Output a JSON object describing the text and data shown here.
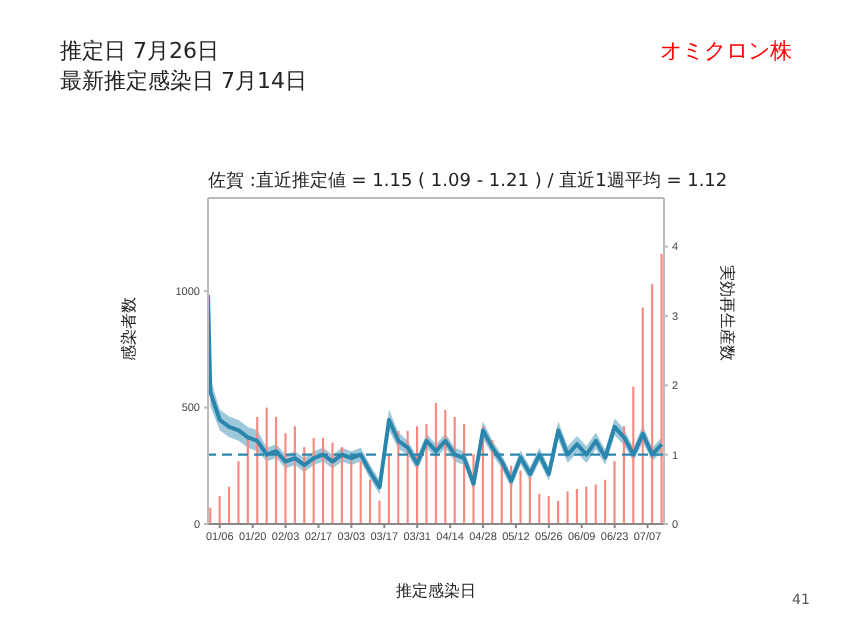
{
  "chart_data": {
    "type": "bar",
    "title": "佐賀 :直近推定値 = 1.15 ( 1.09 - 1.21 ) / 直近1週平均 = 1.12",
    "xlabel": "推定感染日",
    "ylabel": "感染者数",
    "y2label": "実効再生産数",
    "annotations": [
      "推定日  7月26日",
      "最新推定感染日  7月14日",
      "オミクロン株",
      "41"
    ],
    "x": [
      "--01-02",
      "--01-06",
      "--01-10",
      "--01-14",
      "--01-18",
      "--01-22",
      "--01-26",
      "--01-30",
      "--02-03",
      "--02-07",
      "--02-11",
      "--02-15",
      "--02-19",
      "--02-23",
      "--02-27",
      "--03-03",
      "--03-07",
      "--03-11",
      "--03-15",
      "--03-19",
      "--03-23",
      "--03-27",
      "--03-31",
      "--04-04",
      "--04-08",
      "--04-12",
      "--04-16",
      "--04-20",
      "--04-24",
      "--04-28",
      "--05-02",
      "--05-06",
      "--05-10",
      "--05-14",
      "--05-18",
      "--05-22",
      "--05-26",
      "--05-30",
      "--06-03",
      "--06-07",
      "--06-11",
      "--06-15",
      "--06-19",
      "--06-23",
      "--06-27",
      "--07-01",
      "--07-05",
      "--07-09",
      "--07-13"
    ],
    "series": [
      {
        "color": "#f8877e",
        "values": [
          70,
          120,
          160,
          270,
          370,
          460,
          500,
          460,
          390,
          420,
          330,
          370,
          370,
          350,
          330,
          300,
          270,
          190,
          100,
          300,
          400,
          400,
          420,
          430,
          520,
          490,
          460,
          430,
          300,
          420,
          360,
          270,
          250,
          230,
          200,
          130,
          120,
          100,
          140,
          150,
          160,
          170,
          190,
          270,
          420,
          590,
          930,
          1030,
          1160
        ]
      },
      {
        "type": "line",
        "axis": "y2",
        "color": "#2b86ad",
        "x": [
          "--01-01",
          "--01-02",
          "--01-06",
          "--01-10",
          "--01-14",
          "--01-18",
          "--01-22",
          "--01-26",
          "--01-30",
          "--02-03",
          "--02-07",
          "--02-11",
          "--02-15",
          "--02-19",
          "--02-23",
          "--02-27",
          "--03-03",
          "--03-07",
          "--03-11",
          "--03-15",
          "--03-19",
          "--03-23",
          "--03-27",
          "--03-31",
          "--04-04",
          "--04-08",
          "--04-12",
          "--04-16",
          "--04-20",
          "--04-24",
          "--04-28",
          "--05-02",
          "--05-06",
          "--05-10",
          "--05-14",
          "--05-18",
          "--05-22",
          "--05-26",
          "--05-30",
          "--06-03",
          "--06-07",
          "--06-11",
          "--06-15",
          "--06-19",
          "--06-23",
          "--06-27",
          "--07-01",
          "--07-05",
          "--07-09",
          "--07-13"
        ],
        "values": [
          3.3,
          1.9,
          1.5,
          1.4,
          1.35,
          1.25,
          1.2,
          1.0,
          1.05,
          0.9,
          0.95,
          0.85,
          0.95,
          1.0,
          0.9,
          1.0,
          0.95,
          1.0,
          0.75,
          0.53,
          1.5,
          1.2,
          1.1,
          0.87,
          1.2,
          1.05,
          1.2,
          1.0,
          0.95,
          0.58,
          1.35,
          1.1,
          0.9,
          0.62,
          0.96,
          0.72,
          1.0,
          0.72,
          1.35,
          1.0,
          1.15,
          1.0,
          1.2,
          0.96,
          1.4,
          1.25,
          1.0,
          1.3,
          1.0,
          1.15
        ],
        "lower": [
          3.0,
          1.7,
          1.35,
          1.25,
          1.2,
          1.1,
          1.05,
          0.9,
          0.95,
          0.8,
          0.85,
          0.75,
          0.85,
          0.9,
          0.8,
          0.9,
          0.85,
          0.9,
          0.65,
          0.43,
          1.35,
          1.08,
          1.0,
          0.77,
          1.1,
          0.95,
          1.1,
          0.9,
          0.85,
          0.48,
          1.22,
          1.0,
          0.8,
          0.52,
          0.86,
          0.62,
          0.9,
          0.62,
          1.22,
          0.88,
          1.03,
          0.88,
          1.08,
          0.85,
          1.28,
          1.13,
          0.9,
          1.18,
          0.9,
          1.05
        ],
        "upper": [
          3.5,
          2.1,
          1.65,
          1.55,
          1.5,
          1.4,
          1.35,
          1.1,
          1.15,
          1.0,
          1.05,
          0.95,
          1.05,
          1.1,
          1.0,
          1.1,
          1.05,
          1.1,
          0.85,
          0.63,
          1.65,
          1.32,
          1.2,
          0.97,
          1.3,
          1.15,
          1.3,
          1.1,
          1.05,
          0.68,
          1.48,
          1.2,
          1.0,
          0.72,
          1.06,
          0.82,
          1.1,
          0.82,
          1.48,
          1.12,
          1.27,
          1.12,
          1.32,
          1.07,
          1.52,
          1.37,
          1.1,
          1.42,
          1.1,
          1.25
        ]
      }
    ],
    "ylim": [
      0,
      1400
    ],
    "yticks": [
      0,
      500,
      1000
    ],
    "y2lim": [
      0,
      4.7
    ],
    "y2ticks": [
      0,
      1,
      2,
      3,
      4
    ],
    "xlim": [
      "--01-01",
      "--07-14"
    ],
    "xticks": [
      {
        "value": "--01-06",
        "label": "01/06"
      },
      {
        "value": "--01-20",
        "label": "01/20"
      },
      {
        "value": "--02-03",
        "label": "02/03"
      },
      {
        "value": "--02-17",
        "label": "02/17"
      },
      {
        "value": "--03-03",
        "label": "03/03"
      },
      {
        "value": "--03-17",
        "label": "03/17"
      },
      {
        "value": "--03-31",
        "label": "03/31"
      },
      {
        "value": "--04-14",
        "label": "04/14"
      },
      {
        "value": "--04-28",
        "label": "04/28"
      },
      {
        "value": "--05-12",
        "label": "05/12"
      },
      {
        "value": "--05-26",
        "label": "05/26"
      },
      {
        "value": "--06-09",
        "label": "06/09"
      },
      {
        "value": "--06-23",
        "label": "06/23"
      },
      {
        "value": "--07-07",
        "label": "07/07"
      }
    ],
    "ref_lines": [
      {
        "axis": "y2",
        "value": 1,
        "color": "#2b86ad",
        "line_style": "dashed"
      }
    ]
  }
}
